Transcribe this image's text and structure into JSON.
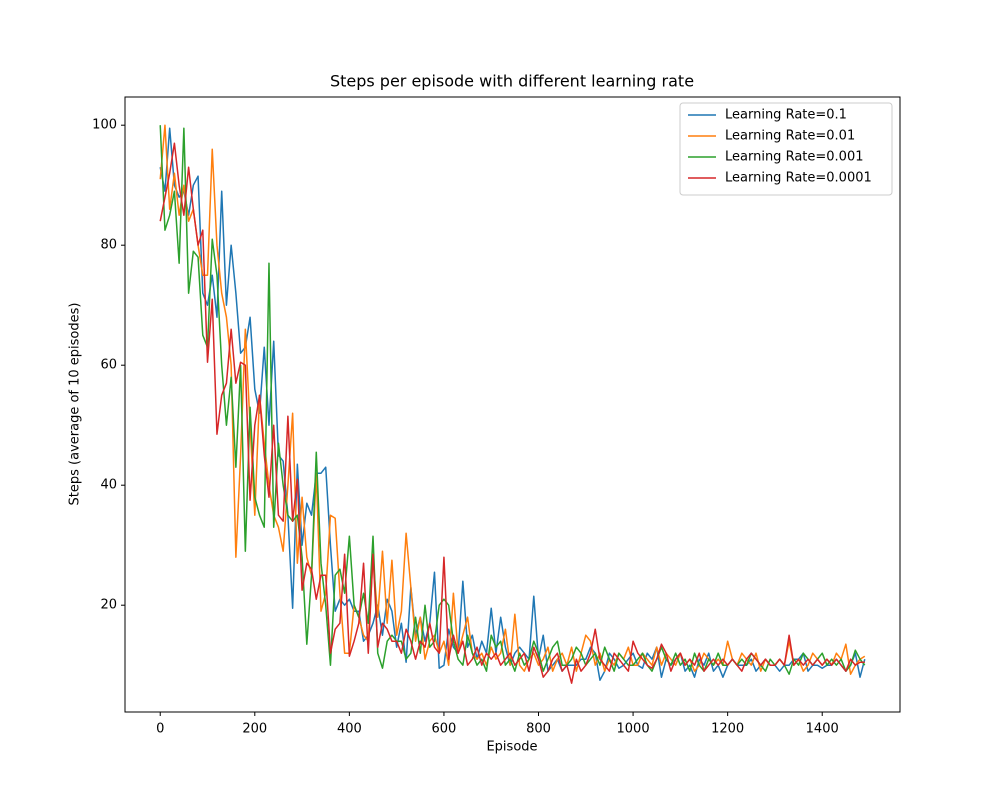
{
  "chart_data": {
    "type": "line",
    "title": "Steps per episode with different learning rate",
    "xlabel": "Episode",
    "ylabel": "Steps (average of 10 episodes)",
    "x": [
      0,
      10,
      20,
      30,
      40,
      50,
      60,
      70,
      80,
      90,
      100,
      110,
      120,
      130,
      140,
      150,
      160,
      170,
      180,
      190,
      200,
      210,
      220,
      230,
      240,
      250,
      260,
      270,
      280,
      290,
      300,
      310,
      320,
      330,
      340,
      350,
      360,
      370,
      380,
      390,
      400,
      410,
      420,
      430,
      440,
      450,
      460,
      470,
      480,
      490,
      500,
      510,
      520,
      530,
      540,
      550,
      560,
      570,
      580,
      590,
      600,
      610,
      620,
      630,
      640,
      650,
      660,
      670,
      680,
      690,
      700,
      710,
      720,
      730,
      740,
      750,
      760,
      770,
      780,
      790,
      800,
      810,
      820,
      830,
      840,
      850,
      860,
      870,
      880,
      890,
      900,
      910,
      920,
      930,
      940,
      950,
      960,
      970,
      980,
      990,
      1000,
      1010,
      1020,
      1030,
      1040,
      1050,
      1060,
      1070,
      1080,
      1090,
      1100,
      1110,
      1120,
      1130,
      1140,
      1150,
      1160,
      1170,
      1180,
      1190,
      1200,
      1210,
      1220,
      1230,
      1240,
      1250,
      1260,
      1270,
      1280,
      1290,
      1300,
      1310,
      1320,
      1330,
      1340,
      1350,
      1360,
      1370,
      1380,
      1390,
      1400,
      1410,
      1420,
      1430,
      1440,
      1450,
      1460,
      1470,
      1480,
      1490
    ],
    "series": [
      {
        "name": "Learning Rate=0.1",
        "color": "#1f77b4",
        "values": [
          93,
          89,
          99.5,
          90,
          88,
          89,
          85,
          90,
          91.5,
          72,
          70,
          75,
          68,
          89,
          70,
          80,
          72,
          62,
          63,
          68,
          56,
          52,
          63,
          50,
          64,
          45,
          44,
          35,
          19.5,
          43.5,
          30,
          37,
          35,
          42,
          42,
          43,
          30,
          19,
          21,
          20,
          21,
          19,
          19,
          14,
          15,
          17,
          20,
          15,
          21,
          19,
          13,
          17,
          10.5,
          23,
          15,
          18,
          14,
          17,
          25.5,
          9.5,
          10,
          16,
          13,
          12,
          24,
          13,
          15,
          11,
          14,
          12,
          19.5,
          12,
          18,
          13,
          10,
          12,
          13,
          12,
          11,
          21.5,
          11,
          15,
          9,
          10,
          11,
          9,
          10,
          10,
          10,
          11,
          11,
          13,
          12,
          7.5,
          9,
          12,
          11,
          9.5,
          10,
          11,
          12,
          10,
          9.5,
          12,
          11,
          13,
          8,
          11,
          10,
          11,
          12,
          9,
          10,
          8,
          11,
          10,
          12,
          9,
          10,
          8,
          10,
          11,
          10,
          10,
          10,
          11,
          9,
          10,
          11,
          10,
          10,
          9,
          10,
          10,
          11,
          11,
          12,
          9,
          10,
          10,
          9.5,
          10,
          10,
          11,
          10,
          9,
          10,
          12,
          8,
          11
        ]
      },
      {
        "name": "Learning Rate=0.01",
        "color": "#ff7f0e",
        "values": [
          91,
          100,
          86,
          92,
          85,
          90,
          84,
          86,
          80,
          75,
          75,
          96,
          80,
          72,
          68,
          60,
          28,
          45,
          66,
          50,
          35,
          55,
          47,
          40,
          35,
          33,
          29,
          40,
          52,
          27,
          38,
          28,
          25,
          42,
          19,
          22,
          35,
          34.5,
          22,
          12,
          12,
          20,
          18,
          15,
          14,
          28,
          18,
          29,
          17,
          27.5,
          15,
          19,
          32,
          23,
          14,
          18,
          11,
          14,
          15,
          12,
          14,
          10,
          22,
          12,
          15,
          18,
          12,
          11,
          12,
          10,
          13,
          11,
          12,
          16,
          10,
          18.5,
          10,
          9,
          11,
          12,
          10,
          11,
          13,
          9,
          11,
          12,
          10,
          13,
          9,
          12,
          15,
          14,
          10,
          12,
          9,
          11,
          10,
          12,
          11,
          13,
          10,
          10,
          12,
          11,
          10,
          13,
          10,
          12,
          11,
          10,
          12,
          10,
          11,
          9,
          10,
          12,
          11,
          10,
          11,
          10,
          14,
          11,
          10,
          12,
          11,
          10,
          12,
          9,
          11,
          10,
          10,
          11,
          10,
          14,
          10,
          11,
          9,
          10,
          12,
          11,
          10,
          11,
          10,
          12,
          11,
          13.5,
          8.5,
          10,
          11,
          11.5
        ]
      },
      {
        "name": "Learning Rate=0.001",
        "color": "#2ca02c",
        "values": [
          100,
          82.5,
          85,
          89,
          77,
          99.5,
          72,
          79,
          78,
          65,
          63,
          81,
          75,
          60,
          50,
          58,
          43,
          60,
          29,
          53,
          38,
          35,
          33,
          77,
          33,
          47,
          40,
          35,
          34,
          35,
          28,
          13.5,
          25,
          45.5,
          27,
          20,
          10,
          25,
          26,
          22,
          31.5,
          20,
          18,
          22,
          17,
          31.5,
          12,
          9.5,
          14,
          15,
          14,
          14,
          11,
          12,
          18,
          12,
          20,
          13,
          14,
          20,
          21,
          20,
          14,
          11,
          10,
          15,
          12,
          10,
          11,
          9,
          15,
          13,
          14,
          10,
          11,
          9,
          12,
          10,
          11,
          14,
          12,
          9,
          11,
          13,
          14,
          10,
          10,
          11,
          13,
          12,
          10,
          11,
          12,
          10,
          13,
          11,
          9,
          12,
          11,
          10,
          10,
          11,
          12,
          10,
          9,
          11,
          13,
          11,
          10,
          12,
          10,
          11,
          9,
          12,
          10,
          9,
          11,
          10,
          12,
          10,
          10,
          11,
          10,
          11,
          10,
          12,
          11,
          10,
          9,
          11,
          10,
          11,
          10,
          8.5,
          11,
          10,
          12,
          11,
          10,
          11,
          12,
          10,
          11,
          10,
          11,
          9,
          10,
          12.5,
          11,
          10
        ]
      },
      {
        "name": "Learning Rate=0.0001",
        "color": "#d62728",
        "values": [
          84,
          88,
          92,
          97,
          90,
          85,
          93,
          86,
          80,
          82.5,
          60.5,
          71,
          48.5,
          55,
          57,
          66,
          57,
          60.5,
          60,
          37.5,
          50,
          55,
          45,
          38,
          50,
          35,
          34,
          51.5,
          34,
          41,
          22.5,
          27,
          26,
          21,
          25,
          25,
          12,
          16,
          17,
          28.5,
          11.5,
          14,
          17,
          27,
          12,
          28.5,
          13,
          17,
          16,
          14,
          14,
          12,
          16,
          14,
          11,
          14,
          13,
          17,
          13,
          12,
          28,
          11,
          15,
          12,
          14,
          10,
          11,
          13,
          10,
          12,
          11,
          12,
          10,
          11,
          12,
          10,
          11,
          12,
          9,
          13,
          11,
          8,
          9,
          11,
          12,
          9,
          10,
          7,
          11,
          9,
          10,
          12,
          16,
          11,
          10,
          9,
          12,
          11,
          10,
          9,
          14,
          12,
          11,
          10,
          9.5,
          11,
          13.5,
          12,
          9,
          11,
          12,
          10,
          11,
          10,
          12,
          9,
          10,
          11,
          10,
          11,
          10,
          11,
          10,
          9,
          11,
          12,
          11,
          10,
          11,
          10,
          10,
          11,
          10,
          15,
          10,
          11,
          10,
          11,
          10,
          11,
          10,
          11,
          10,
          11,
          10,
          9,
          11,
          10,
          10.5,
          10.5
        ]
      }
    ],
    "xlim": [
      -74.5,
      1564.5
    ],
    "xticks": [
      0,
      200,
      400,
      600,
      800,
      1000,
      1200,
      1400
    ],
    "ylim": [
      2.2,
      104.7
    ],
    "yticks": [
      20,
      40,
      60,
      80,
      100
    ],
    "grid": false,
    "legend": "upper right"
  }
}
